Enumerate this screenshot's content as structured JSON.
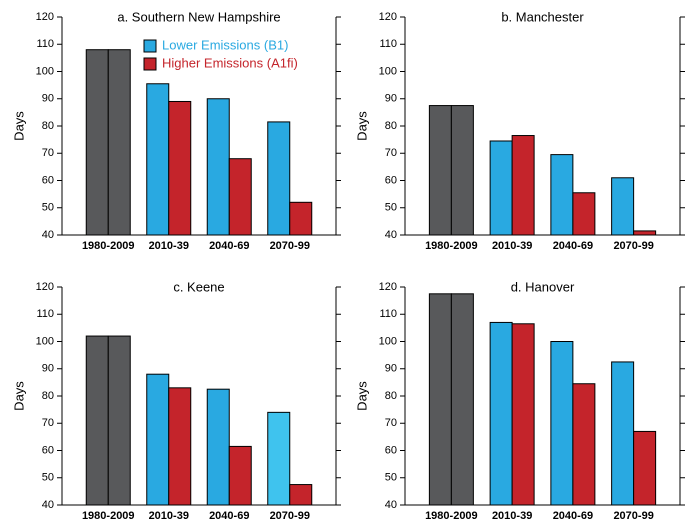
{
  "chart_data": [
    {
      "type": "bar",
      "title": "a. Southern New Hampshire",
      "y_label": "Days",
      "categories": [
        "1980-2009",
        "2010-39",
        "2040-69",
        "2070-99"
      ],
      "series": [
        {
          "name": "Lower Emissions (B1)",
          "color": "#29a9e1",
          "bar_colors": [
            "#58595b",
            "#29a9e1",
            "#29a9e1",
            "#29a9e1"
          ],
          "values": [
            108,
            95.5,
            90,
            81.5
          ]
        },
        {
          "name": "Higher Emissions (A1fi)",
          "color": "#c4242b",
          "bar_colors": [
            "#58595b",
            "#c4242b",
            "#c4242b",
            "#c4242b"
          ],
          "values": [
            108,
            89,
            68,
            52
          ]
        }
      ],
      "ylim": [
        40,
        120
      ],
      "yticks": [
        40,
        50,
        60,
        70,
        80,
        90,
        100,
        110,
        120
      ],
      "legend": "top"
    },
    {
      "type": "bar",
      "title": "b. Manchester",
      "y_label": "Days",
      "categories": [
        "1980-2009",
        "2010-39",
        "2040-69",
        "2070-99"
      ],
      "series": [
        {
          "color": "#29a9e1",
          "bar_colors": [
            "#58595b",
            "#29a9e1",
            "#29a9e1",
            "#29a9e1"
          ],
          "values": [
            87.5,
            74.5,
            69.5,
            61
          ]
        },
        {
          "color": "#c4242b",
          "bar_colors": [
            "#58595b",
            "#c4242b",
            "#c4242b",
            "#c4242b"
          ],
          "values": [
            87.5,
            76.5,
            55.5,
            41.5
          ]
        }
      ],
      "ylim": [
        40,
        120
      ],
      "yticks": [
        40,
        50,
        60,
        70,
        80,
        90,
        100,
        110,
        120
      ]
    },
    {
      "type": "bar",
      "title": "c. Keene",
      "y_label": "Days",
      "categories": [
        "1980-2009",
        "2010-39",
        "2040-69",
        "2070-99"
      ],
      "series": [
        {
          "color": "#29a9e1",
          "bar_colors": [
            "#58595b",
            "#29a9e1",
            "#29a9e1",
            "#3fc3ee"
          ],
          "values": [
            102,
            88,
            82.5,
            74
          ]
        },
        {
          "color": "#c4242b",
          "bar_colors": [
            "#58595b",
            "#c4242b",
            "#c4242b",
            "#c4242b"
          ],
          "values": [
            102,
            83,
            61.5,
            47.5
          ]
        }
      ],
      "ylim": [
        40,
        120
      ],
      "yticks": [
        40,
        50,
        60,
        70,
        80,
        90,
        100,
        110,
        120
      ]
    },
    {
      "type": "bar",
      "title": "d. Hanover",
      "y_label": "Days",
      "categories": [
        "1980-2009",
        "2010-39",
        "2040-69",
        "2070-99"
      ],
      "series": [
        {
          "color": "#29a9e1",
          "bar_colors": [
            "#58595b",
            "#29a9e1",
            "#29a9e1",
            "#29a9e1"
          ],
          "values": [
            117.5,
            107,
            100,
            92.5
          ]
        },
        {
          "color": "#c4242b",
          "bar_colors": [
            "#58595b",
            "#c4242b",
            "#c4242b",
            "#c4242b"
          ],
          "values": [
            117.5,
            106.5,
            84.5,
            67
          ]
        }
      ],
      "ylim": [
        40,
        120
      ],
      "yticks": [
        40,
        50,
        60,
        70,
        80,
        90,
        100,
        110,
        120
      ]
    }
  ]
}
